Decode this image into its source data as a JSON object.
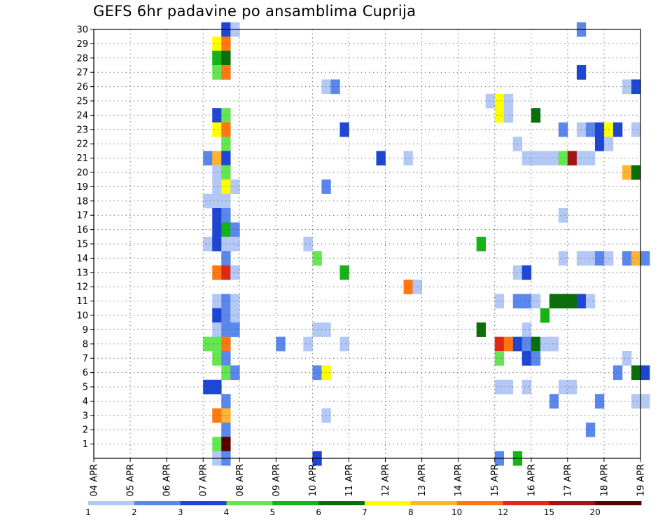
{
  "chart_data": {
    "type": "heatmap",
    "title": "GEFS 6hr padavine po ansamblima Cuprija",
    "xlabel": "",
    "ylabel": "",
    "x_tick_labels": [
      "04 APR",
      "05 APR",
      "06 APR",
      "07 APR",
      "08 APR",
      "09 APR",
      "10 APR",
      "11 APR",
      "12 APR",
      "13 APR",
      "14 APR",
      "15 APR",
      "16 APR",
      "17 APR",
      "18 APR",
      "19 APR"
    ],
    "x_range_days": [
      0,
      15
    ],
    "time_step_days": 0.25,
    "y_range": [
      0,
      30
    ],
    "y_ticks": [
      1,
      2,
      3,
      4,
      5,
      6,
      7,
      8,
      9,
      10,
      11,
      12,
      13,
      14,
      15,
      16,
      17,
      18,
      19,
      20,
      21,
      22,
      23,
      24,
      25,
      26,
      27,
      28,
      29,
      30
    ],
    "grid": "dotted",
    "colorbar": {
      "placement": "bottom",
      "boundaries": [
        1,
        2,
        3,
        4,
        5,
        6,
        7,
        8,
        10,
        12,
        15,
        20
      ],
      "labels": [
        "1",
        "2",
        "3",
        "4",
        "5",
        "6",
        "7",
        "8",
        "10",
        "12",
        "15",
        "20"
      ],
      "colors": [
        "#b4c8f5",
        "#5a87eb",
        "#1e46d2",
        "#64e650",
        "#14b414",
        "#0a6e0a",
        "#ffff00",
        "#ffb432",
        "#ff7814",
        "#e12814",
        "#a01414",
        "#5a0000"
      ]
    },
    "legend": "colorbar-bottom",
    "cells_note": "Each cell: member (y), day offset from 04 APR 00Z (x, 0.25 = 6 h), color class index into colorbar.colors",
    "cells": [
      [
        30,
        3.5,
        2
      ],
      [
        30,
        3.75,
        0
      ],
      [
        30,
        13.25,
        1
      ],
      [
        29,
        3.25,
        6
      ],
      [
        29,
        3.5,
        8
      ],
      [
        28,
        3.25,
        4
      ],
      [
        28,
        3.5,
        5
      ],
      [
        27,
        3.25,
        3
      ],
      [
        27,
        3.5,
        8
      ],
      [
        27,
        13.25,
        2
      ],
      [
        26,
        6.25,
        0
      ],
      [
        26,
        6.5,
        1
      ],
      [
        26,
        14.5,
        0
      ],
      [
        26,
        14.75,
        2
      ],
      [
        25,
        10.75,
        0
      ],
      [
        25,
        11.0,
        6
      ],
      [
        25,
        11.25,
        0
      ],
      [
        24,
        3.25,
        2
      ],
      [
        24,
        3.5,
        3
      ],
      [
        24,
        11.0,
        6
      ],
      [
        24,
        11.25,
        0
      ],
      [
        24,
        12.0,
        5
      ],
      [
        23,
        3.25,
        6
      ],
      [
        23,
        3.5,
        8
      ],
      [
        23,
        6.75,
        2
      ],
      [
        23,
        12.75,
        1
      ],
      [
        23,
        13.25,
        0
      ],
      [
        23,
        13.5,
        1
      ],
      [
        23,
        13.75,
        2
      ],
      [
        23,
        14.0,
        6
      ],
      [
        23,
        14.25,
        2
      ],
      [
        23,
        14.75,
        0
      ],
      [
        22,
        3.5,
        3
      ],
      [
        22,
        11.5,
        0
      ],
      [
        22,
        13.75,
        2
      ],
      [
        22,
        14.0,
        0
      ],
      [
        21,
        3.0,
        1
      ],
      [
        21,
        3.25,
        7
      ],
      [
        21,
        3.5,
        2
      ],
      [
        21,
        7.75,
        2
      ],
      [
        21,
        8.5,
        0
      ],
      [
        21,
        11.75,
        0
      ],
      [
        21,
        12.0,
        0
      ],
      [
        21,
        12.25,
        0
      ],
      [
        21,
        12.5,
        0
      ],
      [
        21,
        12.75,
        3
      ],
      [
        21,
        13.0,
        10
      ],
      [
        21,
        13.25,
        0
      ],
      [
        21,
        13.5,
        0
      ],
      [
        20,
        3.25,
        0
      ],
      [
        20,
        3.5,
        3
      ],
      [
        20,
        14.5,
        7
      ],
      [
        20,
        14.75,
        5
      ],
      [
        19,
        3.25,
        0
      ],
      [
        19,
        3.5,
        6
      ],
      [
        19,
        3.75,
        0
      ],
      [
        19,
        6.25,
        1
      ],
      [
        18,
        3.0,
        0
      ],
      [
        18,
        3.25,
        0
      ],
      [
        18,
        3.5,
        0
      ],
      [
        17,
        3.25,
        2
      ],
      [
        17,
        3.5,
        1
      ],
      [
        17,
        12.75,
        0
      ],
      [
        16,
        3.25,
        2
      ],
      [
        16,
        3.5,
        4
      ],
      [
        16,
        3.75,
        1
      ],
      [
        15,
        3.0,
        0
      ],
      [
        15,
        3.25,
        2
      ],
      [
        15,
        3.5,
        0
      ],
      [
        15,
        3.75,
        0
      ],
      [
        15,
        5.75,
        0
      ],
      [
        15,
        10.5,
        4
      ],
      [
        14,
        3.5,
        1
      ],
      [
        14,
        6.0,
        3
      ],
      [
        14,
        12.75,
        0
      ],
      [
        14,
        13.25,
        0
      ],
      [
        14,
        13.5,
        0
      ],
      [
        14,
        13.75,
        1
      ],
      [
        14,
        14.0,
        0
      ],
      [
        14,
        14.5,
        1
      ],
      [
        14,
        14.75,
        7
      ],
      [
        14,
        15.0,
        1
      ],
      [
        13,
        3.25,
        8
      ],
      [
        13,
        3.5,
        9
      ],
      [
        13,
        3.75,
        0
      ],
      [
        13,
        6.75,
        4
      ],
      [
        13,
        11.5,
        0
      ],
      [
        13,
        11.75,
        2
      ],
      [
        12,
        8.5,
        8
      ],
      [
        12,
        8.75,
        0
      ],
      [
        11,
        3.25,
        0
      ],
      [
        11,
        3.5,
        1
      ],
      [
        11,
        3.75,
        0
      ],
      [
        11,
        11.0,
        0
      ],
      [
        11,
        11.5,
        1
      ],
      [
        11,
        11.75,
        1
      ],
      [
        11,
        12.0,
        0
      ],
      [
        11,
        12.5,
        5
      ],
      [
        11,
        12.75,
        5
      ],
      [
        11,
        13.0,
        5
      ],
      [
        11,
        13.25,
        2
      ],
      [
        11,
        13.5,
        0
      ],
      [
        10,
        3.25,
        2
      ],
      [
        10,
        3.5,
        1
      ],
      [
        10,
        3.75,
        0
      ],
      [
        10,
        12.25,
        4
      ],
      [
        9,
        3.25,
        0
      ],
      [
        9,
        3.5,
        1
      ],
      [
        9,
        3.75,
        1
      ],
      [
        9,
        6.0,
        0
      ],
      [
        9,
        6.25,
        0
      ],
      [
        9,
        10.5,
        5
      ],
      [
        9,
        11.75,
        0
      ],
      [
        8,
        3.0,
        3
      ],
      [
        8,
        3.25,
        3
      ],
      [
        8,
        3.5,
        8
      ],
      [
        8,
        5.0,
        1
      ],
      [
        8,
        5.75,
        0
      ],
      [
        8,
        6.75,
        0
      ],
      [
        8,
        11.0,
        9
      ],
      [
        8,
        11.25,
        8
      ],
      [
        8,
        11.5,
        2
      ],
      [
        8,
        11.75,
        1
      ],
      [
        8,
        12.0,
        5
      ],
      [
        8,
        12.25,
        0
      ],
      [
        8,
        12.5,
        0
      ],
      [
        7,
        3.25,
        3
      ],
      [
        7,
        3.5,
        1
      ],
      [
        7,
        11.0,
        3
      ],
      [
        7,
        11.75,
        2
      ],
      [
        7,
        12.0,
        1
      ],
      [
        7,
        14.5,
        0
      ],
      [
        6,
        3.5,
        3
      ],
      [
        6,
        3.75,
        1
      ],
      [
        6,
        6.0,
        1
      ],
      [
        6,
        6.25,
        6
      ],
      [
        6,
        14.25,
        1
      ],
      [
        6,
        14.75,
        5
      ],
      [
        6,
        15.0,
        2
      ],
      [
        5,
        3.0,
        2
      ],
      [
        5,
        3.25,
        2
      ],
      [
        5,
        11.0,
        0
      ],
      [
        5,
        11.25,
        0
      ],
      [
        5,
        11.75,
        0
      ],
      [
        5,
        12.75,
        0
      ],
      [
        5,
        13.0,
        0
      ],
      [
        4,
        3.5,
        1
      ],
      [
        4,
        12.5,
        1
      ],
      [
        4,
        13.75,
        1
      ],
      [
        4,
        14.75,
        0
      ],
      [
        4,
        15.0,
        0
      ],
      [
        3,
        3.25,
        8
      ],
      [
        3,
        3.5,
        7
      ],
      [
        3,
        6.25,
        0
      ],
      [
        2,
        3.5,
        1
      ],
      [
        2,
        13.5,
        1
      ],
      [
        1,
        3.25,
        3
      ],
      [
        1,
        3.5,
        11
      ],
      [
        0,
        3.25,
        0
      ],
      [
        0,
        3.5,
        1
      ],
      [
        0,
        6.0,
        2
      ],
      [
        0,
        11.0,
        1
      ],
      [
        0,
        11.5,
        4
      ]
    ]
  }
}
